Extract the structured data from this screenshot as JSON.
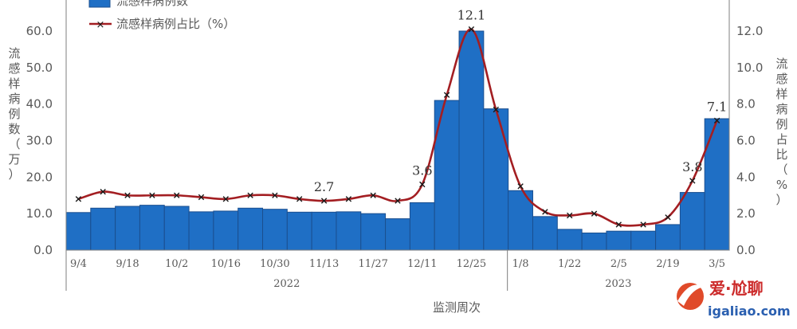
{
  "chart_data": {
    "type": "bar",
    "title": "",
    "xlabel": "监测周次",
    "ylabel_left": "流感样病例数（万）",
    "ylabel_right": "流感样病例占比（%）",
    "ylim_left": [
      0,
      70
    ],
    "ylim_right": [
      0,
      14
    ],
    "y_ticks_left": [
      "0.0",
      "10.0",
      "20.0",
      "30.0",
      "40.0",
      "50.0",
      "60.0"
    ],
    "y_ticks_right": [
      "0.0",
      "2.0",
      "4.0",
      "6.0",
      "8.0",
      "10.0",
      "12.0"
    ],
    "x_tick_labels": [
      "9/4",
      "9/18",
      "10/2",
      "10/16",
      "10/30",
      "11/13",
      "11/27",
      "12/11",
      "12/25",
      "1/8",
      "1/22",
      "2/5",
      "2/19",
      "3/5"
    ],
    "year_labels": [
      "2022",
      "2023"
    ],
    "grid": false,
    "legend_position": "top-left",
    "series": [
      {
        "name": "流感样病例数",
        "type": "bar",
        "axis": "left",
        "color": "#1f6fc5",
        "values": [
          10.3,
          11.5,
          12.0,
          12.3,
          12.0,
          10.5,
          10.7,
          11.5,
          11.2,
          10.4,
          10.4,
          10.5,
          10.0,
          8.6,
          13.0,
          41.0,
          60.0,
          38.7,
          16.3,
          9.2,
          5.7,
          4.7,
          5.2,
          5.2,
          7.0,
          15.8,
          36.0
        ]
      },
      {
        "name": "流感样病例占比（%）",
        "type": "line",
        "axis": "right",
        "color": "#a31e22",
        "values": [
          2.8,
          3.2,
          3.0,
          3.0,
          3.0,
          2.9,
          2.8,
          3.0,
          3.0,
          2.8,
          2.7,
          2.8,
          3.0,
          2.7,
          3.6,
          8.5,
          12.1,
          7.7,
          3.5,
          2.1,
          1.9,
          2.0,
          1.4,
          1.4,
          1.8,
          3.8,
          7.1
        ]
      }
    ],
    "annotations": [
      {
        "index": 10,
        "text": "2.7"
      },
      {
        "index": 14,
        "text": "3.6"
      },
      {
        "index": 16,
        "text": "12.1"
      },
      {
        "index": 25,
        "text": "3.8"
      },
      {
        "index": 26,
        "text": "7.1"
      }
    ]
  },
  "watermark": {
    "text": "爱·尬聊",
    "url": "igaliao.com"
  }
}
